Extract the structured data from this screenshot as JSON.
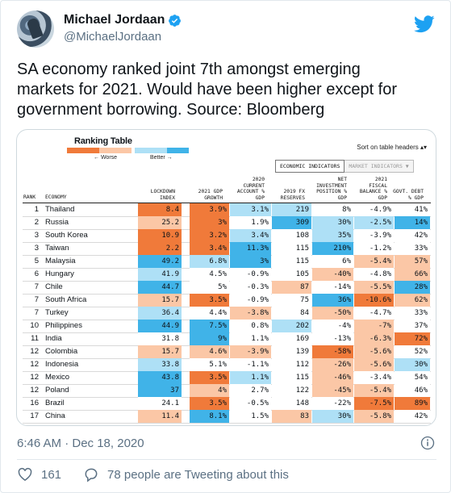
{
  "tweet": {
    "author_name": "Michael Jordaan",
    "author_handle": "@MichaelJordaan",
    "text_lines": [
      "SA economy ranked joint 7th amongst emerging",
      "markets for 2021. Would have been higher except for",
      "government borrowing. Source: Bloomberg"
    ],
    "timestamp": "6:46 AM · Dec 18, 2020",
    "likes": "161",
    "conversation": "78 people are Tweeting about this"
  },
  "icons": {
    "avatar": "profile-photo",
    "verified": "verified-badge-icon",
    "brand": "twitter-bird-icon",
    "info": "info-icon",
    "like": "heart-icon",
    "reply": "speech-bubble-icon"
  },
  "colors": {
    "twitter_blue": "#1da1f2",
    "text_secondary": "#5b7083",
    "worse_dark": "#f07a3a",
    "worse_light": "#fbc7a6",
    "better_light": "#aee0f6",
    "better_dark": "#40b3e8"
  },
  "ranking_table": {
    "title": "Ranking Table",
    "legend_worse": "← Worse",
    "legend_better": "Better →",
    "sort_note": "Sort on table headers",
    "tab_active": "ECONOMIC INDICATORS",
    "tab_inactive": "MARKET INDICATORS ▼",
    "col_rank": "RANK",
    "col_economy": "ECONOMY",
    "columns": [
      "LOCKDOWN\nINDEX",
      "2021 GDP\nGROWTH",
      "2020\nCURRENT\nACCOUNT %\nGDP",
      "2019 FX\nRESERVES",
      "NET\nINVESTMENT\nPOSITION %\nGDP",
      "2021\nFISCAL\nBALANCE %\nGDP",
      "GOVT. DEBT\n% GDP"
    ],
    "rows": [
      {
        "rank": "1",
        "economy": "Thailand",
        "values": [
          "8.4",
          "3.9%",
          "3.1%",
          "219",
          "8%",
          "-4.9%",
          "41%"
        ],
        "tones": [
          -2,
          -2,
          1,
          1,
          0,
          0,
          0
        ]
      },
      {
        "rank": "2",
        "economy": "Russia",
        "values": [
          "25.2",
          "3%",
          "1.9%",
          "309",
          "30%",
          "-2.5%",
          "14%"
        ],
        "tones": [
          -1,
          -2,
          0,
          2,
          1,
          1,
          2
        ]
      },
      {
        "rank": "3",
        "economy": "South Korea",
        "values": [
          "10.9",
          "3.2%",
          "3.4%",
          "108",
          "35%",
          "-3.9%",
          "42%"
        ],
        "tones": [
          -2,
          -2,
          1,
          0,
          1,
          0,
          0
        ]
      },
      {
        "rank": "3",
        "economy": "Taiwan",
        "values": [
          "2.2",
          "3.4%",
          "11.3%",
          "115",
          "210%",
          "-1.2%",
          "33%"
        ],
        "tones": [
          -2,
          -2,
          2,
          0,
          2,
          0,
          0
        ]
      },
      {
        "rank": "5",
        "economy": "Malaysia",
        "values": [
          "49.2",
          "6.8%",
          "3%",
          "115",
          "6%",
          "-5.4%",
          "57%"
        ],
        "tones": [
          2,
          1,
          2,
          0,
          0,
          -1,
          -1
        ]
      },
      {
        "rank": "6",
        "economy": "Hungary",
        "values": [
          "41.9",
          "4.5%",
          "-0.9%",
          "105",
          "-40%",
          "-4.8%",
          "66%"
        ],
        "tones": [
          1,
          0,
          0,
          0,
          -1,
          0,
          -1
        ]
      },
      {
        "rank": "7",
        "economy": "Chile",
        "values": [
          "44.7",
          "5%",
          "-0.3%",
          "87",
          "-14%",
          "-5.5%",
          "28%"
        ],
        "tones": [
          2,
          0,
          0,
          -1,
          0,
          -1,
          2
        ]
      },
      {
        "rank": "7",
        "economy": "South Africa",
        "values": [
          "15.7",
          "3.5%",
          "-0.9%",
          "75",
          "36%",
          "-10.6%",
          "62%"
        ],
        "tones": [
          -1,
          -2,
          0,
          0,
          2,
          -2,
          -1
        ]
      },
      {
        "rank": "7",
        "economy": "Turkey",
        "values": [
          "36.4",
          "4.4%",
          "-3.8%",
          "84",
          "-50%",
          "-4.7%",
          "33%"
        ],
        "tones": [
          1,
          0,
          -1,
          0,
          -1,
          0,
          0
        ]
      },
      {
        "rank": "10",
        "economy": "Philippines",
        "values": [
          "44.9",
          "7.5%",
          "0.8%",
          "202",
          "-4%",
          "-7%",
          "37%"
        ],
        "tones": [
          2,
          2,
          0,
          1,
          0,
          -1,
          0
        ]
      },
      {
        "rank": "11",
        "economy": "India",
        "values": [
          "31.8",
          "9%",
          "1.1%",
          "169",
          "-13%",
          "-6.3%",
          "72%"
        ],
        "tones": [
          0,
          2,
          0,
          0,
          0,
          -1,
          -2
        ]
      },
      {
        "rank": "12",
        "economy": "Colombia",
        "values": [
          "15.7",
          "4.6%",
          "-3.9%",
          "139",
          "-58%",
          "-5.6%",
          "52%"
        ],
        "tones": [
          -1,
          -1,
          -1,
          0,
          -2,
          -1,
          0
        ]
      },
      {
        "rank": "12",
        "economy": "Indonesia",
        "values": [
          "33.8",
          "5.1%",
          "-1.1%",
          "112",
          "-26%",
          "-5.6%",
          "30%"
        ],
        "tones": [
          1,
          0,
          0,
          0,
          -1,
          -1,
          1
        ]
      },
      {
        "rank": "12",
        "economy": "Mexico",
        "values": [
          "43.8",
          "3.5%",
          "1.1%",
          "115",
          "-46%",
          "-3.4%",
          "54%"
        ],
        "tones": [
          2,
          -2,
          1,
          0,
          -1,
          0,
          0
        ]
      },
      {
        "rank": "12",
        "economy": "Poland",
        "values": [
          "37",
          "4%",
          "2.7%",
          "122",
          "-45%",
          "-5.4%",
          "46%"
        ],
        "tones": [
          2,
          -1,
          0,
          0,
          -1,
          -1,
          0
        ]
      },
      {
        "rank": "16",
        "economy": "Brazil",
        "values": [
          "24.1",
          "3.5%",
          "-0.5%",
          "148",
          "-22%",
          "-7.5%",
          "89%"
        ],
        "tones": [
          0,
          -2,
          0,
          0,
          0,
          -2,
          -2
        ]
      },
      {
        "rank": "17",
        "economy": "China",
        "values": [
          "11.4",
          "8.1%",
          "1.5%",
          "83",
          "30%",
          "-5.8%",
          "42%"
        ],
        "tones": [
          -1,
          2,
          0,
          -1,
          1,
          -1,
          0
        ]
      }
    ]
  }
}
